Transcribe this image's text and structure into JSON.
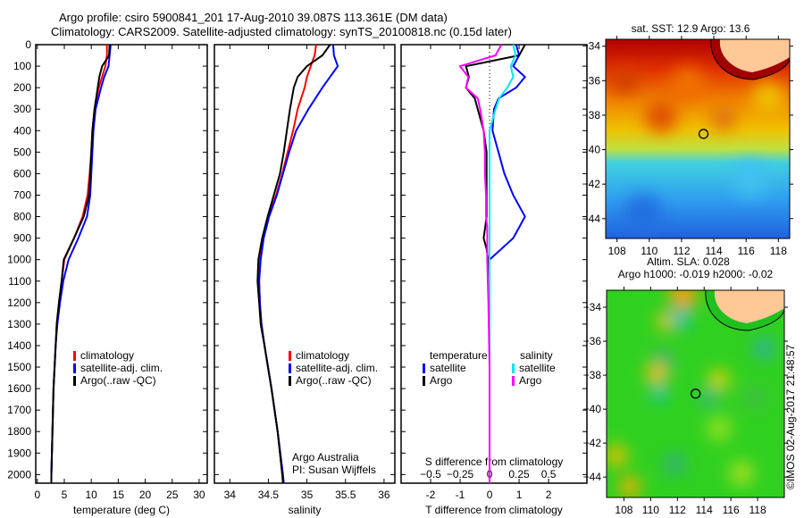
{
  "title_line1": "Argo profile: csiro 5900841_201 17-Aug-2010 39.087S 113.361E (DM data)",
  "title_line2": "Climatology: CARS2009. Satellite-adjusted climatology: synTS_20100818.nc (0.15d later)",
  "colors": {
    "climatology": "#ff0000",
    "satellite": "#0000ff",
    "argo": "#000000",
    "sal_satellite": "#00e5ee",
    "sal_argo": "#ff00ff"
  },
  "chart_data": [
    {
      "type": "line",
      "id": "temperature",
      "xlabel": "temperature (deg C)",
      "xlim": [
        -0.3,
        31.5
      ],
      "ylim": [
        0,
        2040
      ],
      "xticks": [
        0,
        5,
        10,
        15,
        20,
        25,
        30
      ],
      "yticks": [
        0,
        100,
        200,
        300,
        400,
        500,
        600,
        700,
        800,
        900,
        1000,
        1100,
        1200,
        1300,
        1400,
        1500,
        1600,
        1700,
        1800,
        1900,
        2000
      ],
      "legend": [
        "climatology",
        "satellite-adj. clim.",
        "Argo(..raw -QC)"
      ],
      "legend_position": "bottom-center",
      "depth": [
        0,
        50,
        100,
        150,
        200,
        300,
        400,
        500,
        600,
        700,
        800,
        900,
        1000,
        1100,
        1200,
        1300,
        1400,
        1600,
        1800,
        2000,
        2040
      ],
      "series": [
        {
          "name": "climatology",
          "color": "#ff0000",
          "values": [
            12.9,
            12.9,
            12.6,
            12.0,
            11.4,
            10.6,
            10.2,
            10.0,
            9.7,
            9.3,
            8.4,
            6.8,
            5.0,
            4.5,
            4.0,
            3.6,
            3.4,
            3.0,
            2.8,
            2.6,
            2.6
          ]
        },
        {
          "name": "satellite-adj. clim.",
          "color": "#0000ff",
          "values": [
            13.6,
            13.4,
            13.2,
            12.4,
            11.8,
            10.8,
            10.4,
            10.2,
            10.0,
            9.8,
            9.2,
            7.6,
            5.8,
            4.8,
            4.2,
            3.7,
            3.4,
            3.0,
            2.8,
            2.6,
            2.6
          ]
        },
        {
          "name": "Argo(..raw -QC)",
          "color": "#000000",
          "values": [
            13.4,
            13.3,
            12.0,
            11.5,
            11.2,
            10.6,
            10.2,
            10.0,
            9.8,
            9.6,
            8.6,
            6.8,
            4.9,
            4.5,
            4.0,
            3.6,
            3.4,
            3.0,
            2.8,
            2.6,
            2.6
          ]
        }
      ]
    },
    {
      "type": "line",
      "id": "salinity",
      "xlabel": "salinity",
      "xlim": [
        33.8,
        36.14
      ],
      "ylim": [
        0,
        2040
      ],
      "xticks": [
        34,
        34.5,
        35,
        35.5,
        36
      ],
      "legend": [
        "climatology",
        "satellite-adj. clim.",
        "Argo(..raw -QC)"
      ],
      "annotation": [
        "Argo Australia",
        "PI: Susan Wijffels"
      ],
      "depth": [
        0,
        50,
        100,
        150,
        200,
        300,
        400,
        500,
        600,
        700,
        800,
        900,
        1000,
        1100,
        1200,
        1300,
        1400,
        1600,
        1800,
        2000,
        2040
      ],
      "series": [
        {
          "name": "climatology",
          "color": "#ff0000",
          "values": [
            35.12,
            35.1,
            35.05,
            35.0,
            34.97,
            34.88,
            34.82,
            34.75,
            34.68,
            34.6,
            34.5,
            34.43,
            34.39,
            34.38,
            34.39,
            34.41,
            34.45,
            34.54,
            34.62,
            34.68,
            34.69
          ]
        },
        {
          "name": "satellite-adj. clim.",
          "color": "#0000ff",
          "values": [
            35.34,
            35.35,
            35.4,
            35.3,
            35.2,
            35.02,
            34.86,
            34.77,
            34.69,
            34.61,
            34.51,
            34.44,
            34.4,
            34.38,
            34.39,
            34.41,
            34.45,
            34.54,
            34.62,
            34.69,
            34.7
          ]
        },
        {
          "name": "Argo(..raw -QC)",
          "color": "#000000",
          "values": [
            35.3,
            35.2,
            35.0,
            34.88,
            34.83,
            34.78,
            34.74,
            34.7,
            34.65,
            34.57,
            34.49,
            34.42,
            34.37,
            34.36,
            34.38,
            34.4,
            34.45,
            34.54,
            34.62,
            34.68,
            34.69
          ]
        }
      ]
    },
    {
      "type": "line",
      "id": "difference",
      "xlabel": "T difference from climatology",
      "x2label": "S difference from climatology",
      "xlim": [
        -3.0,
        3.3
      ],
      "ylim": [
        0,
        2040
      ],
      "xticks": [
        -2,
        -1,
        0,
        1,
        2
      ],
      "x2ticks": [
        "-0.5",
        "-0.25",
        "0",
        "0.25",
        "0.5"
      ],
      "legend_headers": [
        "temperature",
        "salinity"
      ],
      "legend": [
        "satellite",
        "Argo",
        "satellite",
        "Argo"
      ],
      "depth": [
        0,
        50,
        100,
        150,
        200,
        250,
        300,
        400,
        500,
        600,
        700,
        800,
        850,
        900,
        950,
        1000,
        1200,
        1500,
        1800,
        2040
      ],
      "series": [
        {
          "name": "T satellite",
          "color": "#0000ff",
          "axis": "T",
          "values": [
            0.9,
            1.0,
            0.8,
            1.2,
            0.9,
            0.3,
            0.15,
            0.1,
            0.3,
            0.5,
            0.8,
            1.2,
            1.0,
            0.8,
            0.4,
            0.0,
            0.0,
            0.0,
            0.0,
            0.0
          ]
        },
        {
          "name": "T Argo",
          "color": "#000000",
          "axis": "T",
          "values": [
            1.2,
            1.0,
            -0.8,
            -0.7,
            -0.8,
            -0.5,
            -0.4,
            -0.2,
            -0.1,
            -0.1,
            -0.1,
            -0.1,
            -0.15,
            -0.2,
            -0.1,
            -0.05,
            0.0,
            0.0,
            0.0,
            0.0
          ]
        },
        {
          "name": "S satellite",
          "color": "#00e5ee",
          "axis": "S",
          "values": [
            0.2,
            0.22,
            0.18,
            0.2,
            0.15,
            0.08,
            0.05,
            0.0,
            0.0,
            0.0,
            0.0,
            0.0,
            0.0,
            0.0,
            0.0,
            0.0,
            0.0,
            0.0,
            0.0,
            0.0
          ]
        },
        {
          "name": "S Argo",
          "color": "#ff00ff",
          "axis": "S",
          "values": [
            0.1,
            0.05,
            -0.25,
            -0.18,
            -0.2,
            -0.1,
            -0.08,
            -0.05,
            -0.04,
            -0.04,
            -0.03,
            -0.03,
            -0.02,
            -0.02,
            -0.02,
            -0.02,
            -0.01,
            0.0,
            0.0,
            0.0
          ]
        }
      ]
    },
    {
      "type": "heatmap",
      "id": "sst_map",
      "title": "sat. SST: 12.9 Argo: 13.6",
      "xticks": [
        108,
        110,
        112,
        114,
        116,
        118
      ],
      "yticks": [
        -34,
        -36,
        -38,
        -40,
        -42,
        -44
      ],
      "argo_position": [
        113.361,
        -39.087
      ]
    },
    {
      "type": "heatmap",
      "id": "sla_map",
      "title": [
        "Altim. SLA: 0.028",
        "Argo h1000: -0.019 h2000: -0.02"
      ],
      "xticks": [
        108,
        110,
        112,
        114,
        116,
        118
      ],
      "yticks": [
        -34,
        -36,
        -38,
        -40,
        -42,
        -44
      ],
      "argo_position": [
        113.361,
        -39.087
      ]
    }
  ],
  "copyright": "©IMOS 02-Aug-2017 21:48:57"
}
